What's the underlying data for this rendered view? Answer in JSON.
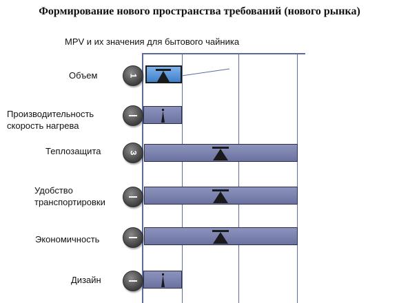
{
  "title": "Формирование нового пространства требований  (нового рынка)",
  "subtitle": "MPV и их значения для бытового чайника",
  "colors": {
    "bar": "#7b82ad",
    "bar_active": "#4a8ad6",
    "axis": "#5c6aa0",
    "badge": "#555555"
  },
  "rows": [
    {
      "label": "Объем",
      "badge": "1",
      "badge_icon": "number-badge",
      "active": true,
      "span": 1
    },
    {
      "label": "Производительность\nскорость нагрева",
      "badge": "",
      "badge_icon": "minus-badge",
      "active": false,
      "span": 1
    },
    {
      "label": "Теплозащита",
      "badge": "3",
      "badge_icon": "number-badge",
      "active": false,
      "span": 4
    },
    {
      "label": "Удобство\nтранспортировки",
      "badge": "",
      "badge_icon": "minus-badge",
      "active": false,
      "span": 4
    },
    {
      "label": "Экономичность",
      "badge": "",
      "badge_icon": "minus-badge",
      "active": false,
      "span": 4
    },
    {
      "label": "Дизайн",
      "badge": "",
      "badge_icon": "minus-badge",
      "active": false,
      "span": 1
    }
  ]
}
